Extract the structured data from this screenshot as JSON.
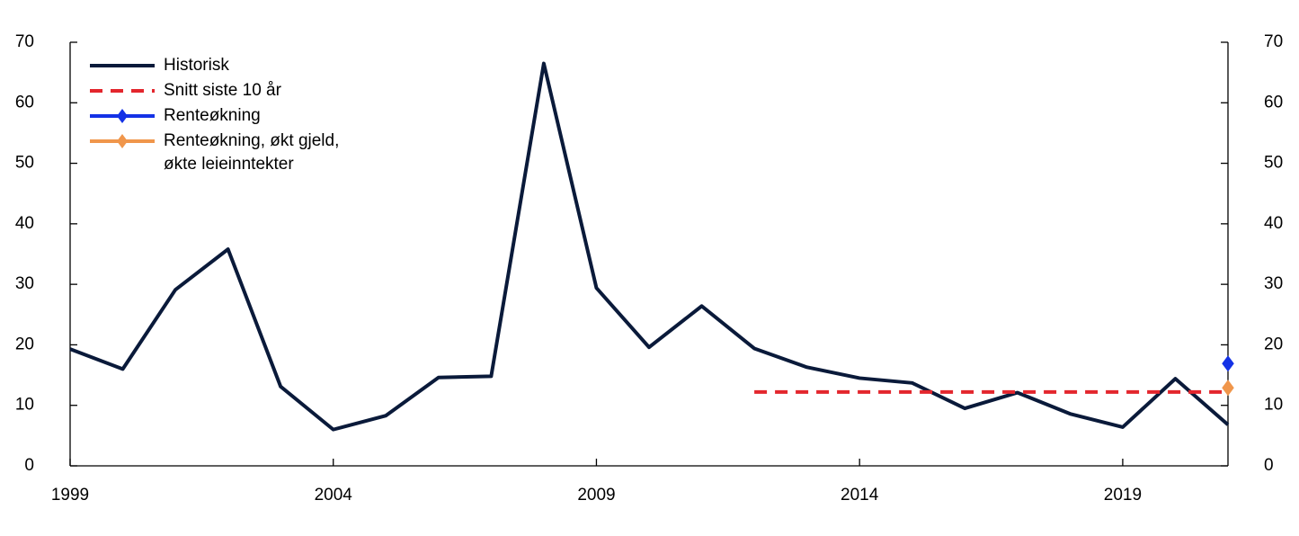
{
  "chart_data": {
    "type": "line",
    "xlim": [
      1999,
      2021
    ],
    "xticks": [
      1999,
      2004,
      2009,
      2014,
      2019
    ],
    "ylim": [
      0,
      70
    ],
    "yticks": [
      0,
      10,
      20,
      30,
      40,
      50,
      60,
      70
    ],
    "y2lim": [
      0,
      70
    ],
    "y2ticks": [
      0,
      10,
      20,
      30,
      40,
      50,
      60,
      70
    ],
    "grid": false,
    "legend": "upper left",
    "series": [
      {
        "name": "Historisk",
        "color": "#0a1a3a",
        "style": "solid",
        "x": [
          1999,
          2000,
          2001,
          2002,
          2003,
          2004,
          2005,
          2006,
          2007,
          2008,
          2009,
          2010,
          2011,
          2012,
          2013,
          2014,
          2015,
          2016,
          2017,
          2018,
          2019,
          2020,
          2021
        ],
        "values": [
          19.3,
          16.0,
          29.1,
          35.8,
          13.1,
          6.0,
          8.3,
          14.6,
          14.8,
          66.5,
          29.4,
          19.6,
          26.4,
          19.4,
          16.3,
          14.5,
          13.7,
          9.5,
          12.1,
          8.6,
          6.4,
          14.4,
          6.8
        ]
      },
      {
        "name": "Snitt siste 10 år",
        "color": "#e3262d",
        "style": "dashed",
        "x": [
          2012,
          2021
        ],
        "values": [
          12.2,
          12.2
        ]
      },
      {
        "name": "Renteøkning",
        "color": "#1432e6",
        "style": "solid",
        "marker": "diamond",
        "x": [
          2021
        ],
        "values": [
          16.9
        ]
      },
      {
        "name": "Renteøkning, økt gjeld, økte leieinntekter",
        "color": "#f0964b",
        "style": "solid",
        "marker": "diamond",
        "x": [
          2021
        ],
        "values": [
          12.9
        ]
      }
    ]
  }
}
